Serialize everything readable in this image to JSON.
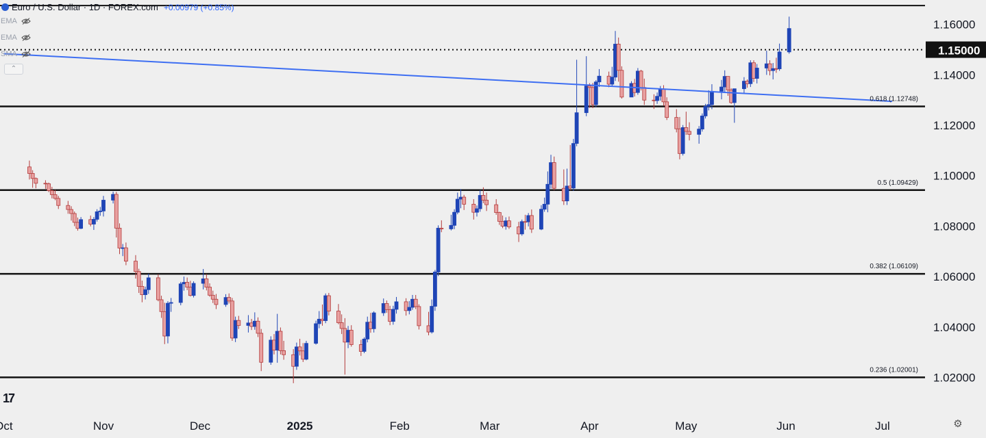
{
  "header": {
    "symbol_title": "Euro / U.S. Dollar · 1D · FOREX.com",
    "change_text": "+0.00979 (+0.85%)",
    "indicators": [
      {
        "label": "EMA",
        "icon": "eye-hidden-icon"
      },
      {
        "label": "EMA",
        "icon": "eye-hidden-icon"
      },
      {
        "label": "SMA",
        "icon": "eye-hidden-icon"
      }
    ],
    "collapse_icon": "chevron-up-icon",
    "logo_text": "17"
  },
  "colors": {
    "background": "#efefef",
    "up_candle": "#1f45b6",
    "down_candle": "#e8a0a0",
    "down_wick": "#b33a3a",
    "trendline": "#3d6ef2",
    "level_line": "#111111",
    "price_label_bg": "#111111",
    "price_label_text": "#ffffff"
  },
  "chart_data": {
    "type": "candlestick",
    "title": "Euro / U.S. Dollar · 1D · FOREX.com",
    "ylim": [
      1.0155,
      1.1678
    ],
    "y_ticks": [
      "1.16000",
      "1.14000",
      "1.12000",
      "1.10000",
      "1.08000",
      "1.06000",
      "1.04000",
      "1.02000"
    ],
    "x_ticks": [
      {
        "label": "Oct",
        "date": "2024-10-01"
      },
      {
        "label": "Nov",
        "date": "2024-11-01"
      },
      {
        "label": "Dec",
        "date": "2024-12-01"
      },
      {
        "label": "2025",
        "date": "2025-01-01"
      },
      {
        "label": "Feb",
        "date": "2025-02-01"
      },
      {
        "label": "Mar",
        "date": "2025-03-01"
      },
      {
        "label": "Apr",
        "date": "2025-04-01"
      },
      {
        "label": "May",
        "date": "2025-05-01"
      },
      {
        "label": "Jun",
        "date": "2025-06-01"
      },
      {
        "label": "Jul",
        "date": "2025-07-01"
      }
    ],
    "current_price": {
      "value": 1.15,
      "label": "1.15000"
    },
    "fib_levels": [
      {
        "label": "0.618 (1.12748)",
        "value": 1.12748
      },
      {
        "label": "0.5 (1.09429)",
        "value": 1.09429
      },
      {
        "label": "0.382 (1.06109)",
        "value": 1.06109
      },
      {
        "label": "0.236 (1.02001)",
        "value": 1.02001
      }
    ],
    "trendline": {
      "start": {
        "date": "2024-10-01",
        "value": 1.1484
      },
      "end": {
        "date": "2025-07-04",
        "value": 1.1295
      }
    },
    "top_line_value": 1.1675,
    "candles_first_date": "2024-10-09",
    "candles": [
      [
        1.1035,
        1.106,
        1.0985,
        1.1009
      ],
      [
        1.1009,
        1.1022,
        1.0952,
        1.0989
      ],
      [
        1.0989,
        1.0993,
        1.095,
        1.097
      ],
      [
        1.097,
        1.0982,
        1.0948,
        1.0968
      ],
      [
        1.0968,
        1.0973,
        1.0935,
        1.0941
      ],
      [
        1.0941,
        1.0956,
        1.091,
        1.0925
      ],
      [
        1.0925,
        1.0944,
        1.0903,
        1.091
      ],
      [
        1.091,
        1.092,
        1.0868,
        1.0882
      ],
      [
        1.0882,
        1.09,
        1.0849,
        1.0866
      ],
      [
        1.0866,
        1.0879,
        1.0822,
        1.085
      ],
      [
        1.085,
        1.0858,
        1.08,
        1.0815
      ],
      [
        1.0815,
        1.0834,
        1.0782,
        1.0791
      ],
      [
        1.0791,
        1.0836,
        1.0788,
        1.0826
      ],
      [
        1.0826,
        1.0842,
        1.0799,
        1.0808
      ],
      [
        1.0808,
        1.0836,
        1.0785,
        1.0827
      ],
      [
        1.0827,
        1.0867,
        1.0818,
        1.0857
      ],
      [
        1.0857,
        1.0876,
        1.0841,
        1.086
      ],
      [
        1.086,
        1.092,
        1.0838,
        1.0903
      ],
      [
        1.0903,
        1.0937,
        1.089,
        1.0926
      ],
      [
        1.0926,
        1.0936,
        1.0755,
        1.0792
      ],
      [
        1.0792,
        1.0811,
        1.0689,
        1.0713
      ],
      [
        1.0713,
        1.0729,
        1.0681,
        1.0714
      ],
      [
        1.0714,
        1.0735,
        1.0645,
        1.0661
      ],
      [
        1.0661,
        1.0685,
        1.0592,
        1.062
      ],
      [
        1.062,
        1.0631,
        1.0535,
        1.0561
      ],
      [
        1.0561,
        1.0584,
        1.0498,
        1.0528
      ],
      [
        1.0528,
        1.056,
        1.0509,
        1.0548
      ],
      [
        1.0548,
        1.0611,
        1.0531,
        1.0595
      ],
      [
        1.0595,
        1.0609,
        1.0502,
        1.0508
      ],
      [
        1.0508,
        1.0524,
        1.0436,
        1.0461
      ],
      [
        1.0461,
        1.0496,
        1.0332,
        1.0364
      ],
      [
        1.0364,
        1.0502,
        1.0335,
        1.0494
      ],
      [
        1.0494,
        1.0515,
        1.046,
        1.0497
      ],
      [
        1.0497,
        1.0579,
        1.0486,
        1.0571
      ],
      [
        1.0571,
        1.06,
        1.0544,
        1.0577
      ],
      [
        1.0577,
        1.0596,
        1.0546,
        1.0558
      ],
      [
        1.0558,
        1.0583,
        1.0521,
        1.0525
      ],
      [
        1.0525,
        1.0581,
        1.0517,
        1.0573
      ],
      [
        1.0573,
        1.063,
        1.0549,
        1.0591
      ],
      [
        1.0591,
        1.061,
        1.0545,
        1.0558
      ],
      [
        1.0558,
        1.0573,
        1.052,
        1.0526
      ],
      [
        1.0526,
        1.0544,
        1.0495,
        1.051
      ],
      [
        1.051,
        1.0531,
        1.0471,
        1.0489
      ],
      [
        1.0489,
        1.053,
        1.048,
        1.0517
      ],
      [
        1.0517,
        1.0533,
        1.0493,
        1.0503
      ],
      [
        1.0503,
        1.0515,
        1.0345,
        1.0356
      ],
      [
        1.0356,
        1.0441,
        1.034,
        1.0426
      ],
      [
        1.0426,
        1.0444,
        1.0392,
        1.0406
      ],
      [
        1.0406,
        1.0447,
        1.0378,
        1.0416
      ],
      [
        1.0416,
        1.0432,
        1.0388,
        1.0402
      ],
      [
        1.0402,
        1.0458,
        1.0389,
        1.0423
      ],
      [
        1.0423,
        1.0438,
        1.036,
        1.0375
      ],
      [
        1.0375,
        1.0392,
        1.0225,
        1.026
      ],
      [
        1.026,
        1.0363,
        1.025,
        1.0348
      ],
      [
        1.0348,
        1.0372,
        1.0291,
        1.0308
      ],
      [
        1.0308,
        1.0452,
        1.0258,
        1.0383
      ],
      [
        1.0383,
        1.0398,
        1.0291,
        1.0306
      ],
      [
        1.0306,
        1.0345,
        1.027,
        1.029
      ],
      [
        1.029,
        1.0312,
        1.0177,
        1.0244
      ],
      [
        1.0244,
        1.0338,
        1.023,
        1.0321
      ],
      [
        1.0321,
        1.0353,
        1.0287,
        1.0305
      ],
      [
        1.0305,
        1.0336,
        1.0261,
        1.0272
      ],
      [
        1.0272,
        1.0345,
        1.0268,
        1.0335
      ],
      [
        1.0335,
        1.0425,
        1.033,
        1.0413
      ],
      [
        1.0413,
        1.0463,
        1.0395,
        1.0431
      ],
      [
        1.0431,
        1.0489,
        1.0405,
        1.0425
      ],
      [
        1.0425,
        1.0533,
        1.0415,
        1.0524
      ],
      [
        1.0524,
        1.0535,
        1.0446,
        1.0463
      ],
      [
        1.0463,
        1.0491,
        1.0411,
        1.0417
      ],
      [
        1.0417,
        1.045,
        1.0372,
        1.0394
      ],
      [
        1.0394,
        1.0435,
        1.0211,
        1.034
      ],
      [
        1.034,
        1.0404,
        1.0316,
        1.0387
      ],
      [
        1.0387,
        1.0407,
        1.0322,
        1.033
      ],
      [
        1.033,
        1.0349,
        1.0285,
        1.0303
      ],
      [
        1.0303,
        1.0359,
        1.0296,
        1.0352
      ],
      [
        1.0352,
        1.0441,
        1.0339,
        1.0419
      ],
      [
        1.0419,
        1.0456,
        1.0377,
        1.0393
      ],
      [
        1.0393,
        1.0462,
        1.0378,
        1.0456
      ],
      [
        1.0456,
        1.0513,
        1.0444,
        1.0493
      ],
      [
        1.0493,
        1.0505,
        1.0456,
        1.0469
      ],
      [
        1.0469,
        1.0484,
        1.0407,
        1.0422
      ],
      [
        1.0422,
        1.0484,
        1.0409,
        1.047
      ],
      [
        1.047,
        1.0519,
        1.0453,
        1.05
      ],
      [
        1.05,
        1.0514,
        1.0445,
        1.0465
      ],
      [
        1.0465,
        1.0503,
        1.045,
        1.0478
      ],
      [
        1.0478,
        1.0527,
        1.0468,
        1.051
      ],
      [
        1.051,
        1.0527,
        1.0471,
        1.0481
      ],
      [
        1.0481,
        1.049,
        1.039,
        1.0405
      ],
      [
        1.0405,
        1.046,
        1.0367,
        1.038
      ],
      [
        1.038,
        1.0509,
        1.0374,
        1.0482
      ],
      [
        1.0482,
        1.0626,
        1.0464,
        1.0618
      ],
      [
        1.0618,
        1.0803,
        1.0602,
        1.0792
      ],
      [
        1.0792,
        1.0823,
        1.0776,
        1.0789
      ],
      [
        1.0789,
        1.0845,
        1.0783,
        1.0803
      ],
      [
        1.0803,
        1.0867,
        1.0788,
        1.0855
      ],
      [
        1.0855,
        1.0933,
        1.0847,
        1.0907
      ],
      [
        1.0907,
        1.0947,
        1.0871,
        1.0915
      ],
      [
        1.0915,
        1.0924,
        1.0864,
        1.0887
      ],
      [
        1.0887,
        1.0907,
        1.0826,
        1.0855
      ],
      [
        1.0855,
        1.0882,
        1.0838,
        1.0869
      ],
      [
        1.0869,
        1.0943,
        1.0857,
        1.0922
      ],
      [
        1.0922,
        1.0954,
        1.0891,
        1.0903
      ],
      [
        1.0903,
        1.0933,
        1.086,
        1.0885
      ],
      [
        1.0885,
        1.0907,
        1.0845,
        1.0854
      ],
      [
        1.0854,
        1.0857,
        1.0805,
        1.0819
      ],
      [
        1.0819,
        1.0842,
        1.0792,
        1.08
      ],
      [
        1.08,
        1.0835,
        1.0786,
        1.0821
      ],
      [
        1.0821,
        1.0838,
        1.0789,
        1.0797
      ],
      [
        1.0797,
        1.0817,
        1.0737,
        1.0769
      ],
      [
        1.0769,
        1.0826,
        1.0762,
        1.0818
      ],
      [
        1.0818,
        1.0845,
        1.0786,
        1.0817
      ],
      [
        1.0817,
        1.0852,
        1.0799,
        1.0842
      ],
      [
        1.0842,
        1.0866,
        1.0773,
        1.0788
      ],
      [
        1.0788,
        1.0883,
        1.0784,
        1.0867
      ],
      [
        1.0867,
        1.0913,
        1.0857,
        1.0887
      ],
      [
        1.0887,
        1.1017,
        1.0855,
        1.0966
      ],
      [
        1.0966,
        1.1083,
        1.0949,
        1.1052
      ],
      [
        1.1052,
        1.1076,
        1.0942,
        1.095
      ],
      [
        1.095,
        1.1025,
        1.0884,
        1.09
      ],
      [
        1.09,
        1.1028,
        1.0884,
        1.0959
      ],
      [
        1.0959,
        1.1122,
        1.0942,
        1.0951
      ],
      [
        1.0951,
        1.1146,
        1.094,
        1.1128
      ],
      [
        1.1128,
        1.146,
        1.1117,
        1.125
      ],
      [
        1.125,
        1.1474,
        1.1236,
        1.1356
      ],
      [
        1.1356,
        1.1367,
        1.1269,
        1.135
      ],
      [
        1.135,
        1.1368,
        1.1268,
        1.1282
      ],
      [
        1.1282,
        1.1379,
        1.1272,
        1.1372
      ],
      [
        1.1372,
        1.1423,
        1.1352,
        1.1395
      ],
      [
        1.1395,
        1.1413,
        1.1351,
        1.1363
      ],
      [
        1.1363,
        1.1432,
        1.1353,
        1.1391
      ],
      [
        1.1391,
        1.1574,
        1.1376,
        1.1522
      ],
      [
        1.1522,
        1.1548,
        1.1373,
        1.1418
      ],
      [
        1.1418,
        1.1434,
        1.1306,
        1.1312
      ],
      [
        1.1312,
        1.1375,
        1.1312,
        1.1366
      ],
      [
        1.1366,
        1.1384,
        1.1314,
        1.133
      ],
      [
        1.133,
        1.1427,
        1.1321,
        1.1415
      ],
      [
        1.1415,
        1.142,
        1.1338,
        1.135
      ],
      [
        1.135,
        1.1385,
        1.1281,
        1.13
      ],
      [
        1.13,
        1.1323,
        1.1265,
        1.1298
      ],
      [
        1.1298,
        1.133,
        1.1285,
        1.1315
      ],
      [
        1.1315,
        1.1356,
        1.1298,
        1.1344
      ],
      [
        1.1344,
        1.1359,
        1.1277,
        1.1293
      ],
      [
        1.1293,
        1.1311,
        1.1221,
        1.1231
      ],
      [
        1.1231,
        1.1264,
        1.1172,
        1.1186
      ],
      [
        1.1186,
        1.1233,
        1.1065,
        1.1088
      ],
      [
        1.1088,
        1.1201,
        1.108,
        1.1191
      ],
      [
        1.1191,
        1.1254,
        1.1162,
        1.1176
      ],
      [
        1.1176,
        1.1212,
        1.114,
        1.1164
      ],
      [
        1.1164,
        1.1197,
        1.1127,
        1.1185
      ],
      [
        1.1185,
        1.1247,
        1.1175,
        1.1237
      ],
      [
        1.1237,
        1.1285,
        1.1227,
        1.1275
      ],
      [
        1.1275,
        1.1339,
        1.1259,
        1.1282
      ],
      [
        1.1282,
        1.1363,
        1.1264,
        1.1335
      ],
      [
        1.1335,
        1.138,
        1.1303,
        1.1352
      ],
      [
        1.1352,
        1.1418,
        1.1332,
        1.1394
      ],
      [
        1.1394,
        1.1394,
        1.1317,
        1.134
      ],
      [
        1.134,
        1.1347,
        1.1285,
        1.129
      ],
      [
        1.129,
        1.1343,
        1.121,
        1.1345
      ],
      [
        1.1345,
        1.1391,
        1.1324,
        1.1375
      ],
      [
        1.1375,
        1.1382,
        1.1349,
        1.1365
      ],
      [
        1.1365,
        1.1458,
        1.1352,
        1.1448
      ],
      [
        1.1448,
        1.1458,
        1.1372,
        1.1386
      ],
      [
        1.1386,
        1.1443,
        1.1366,
        1.1427
      ],
      [
        1.1427,
        1.1496,
        1.14,
        1.1444
      ],
      [
        1.1444,
        1.1458,
        1.1398,
        1.1417
      ],
      [
        1.1417,
        1.1447,
        1.1382,
        1.1425
      ],
      [
        1.1425,
        1.1468,
        1.1408,
        1.1424
      ],
      [
        1.1424,
        1.1524,
        1.1416,
        1.1491
      ],
      [
        1.1491,
        1.1631,
        1.1484,
        1.1584
      ]
    ]
  }
}
